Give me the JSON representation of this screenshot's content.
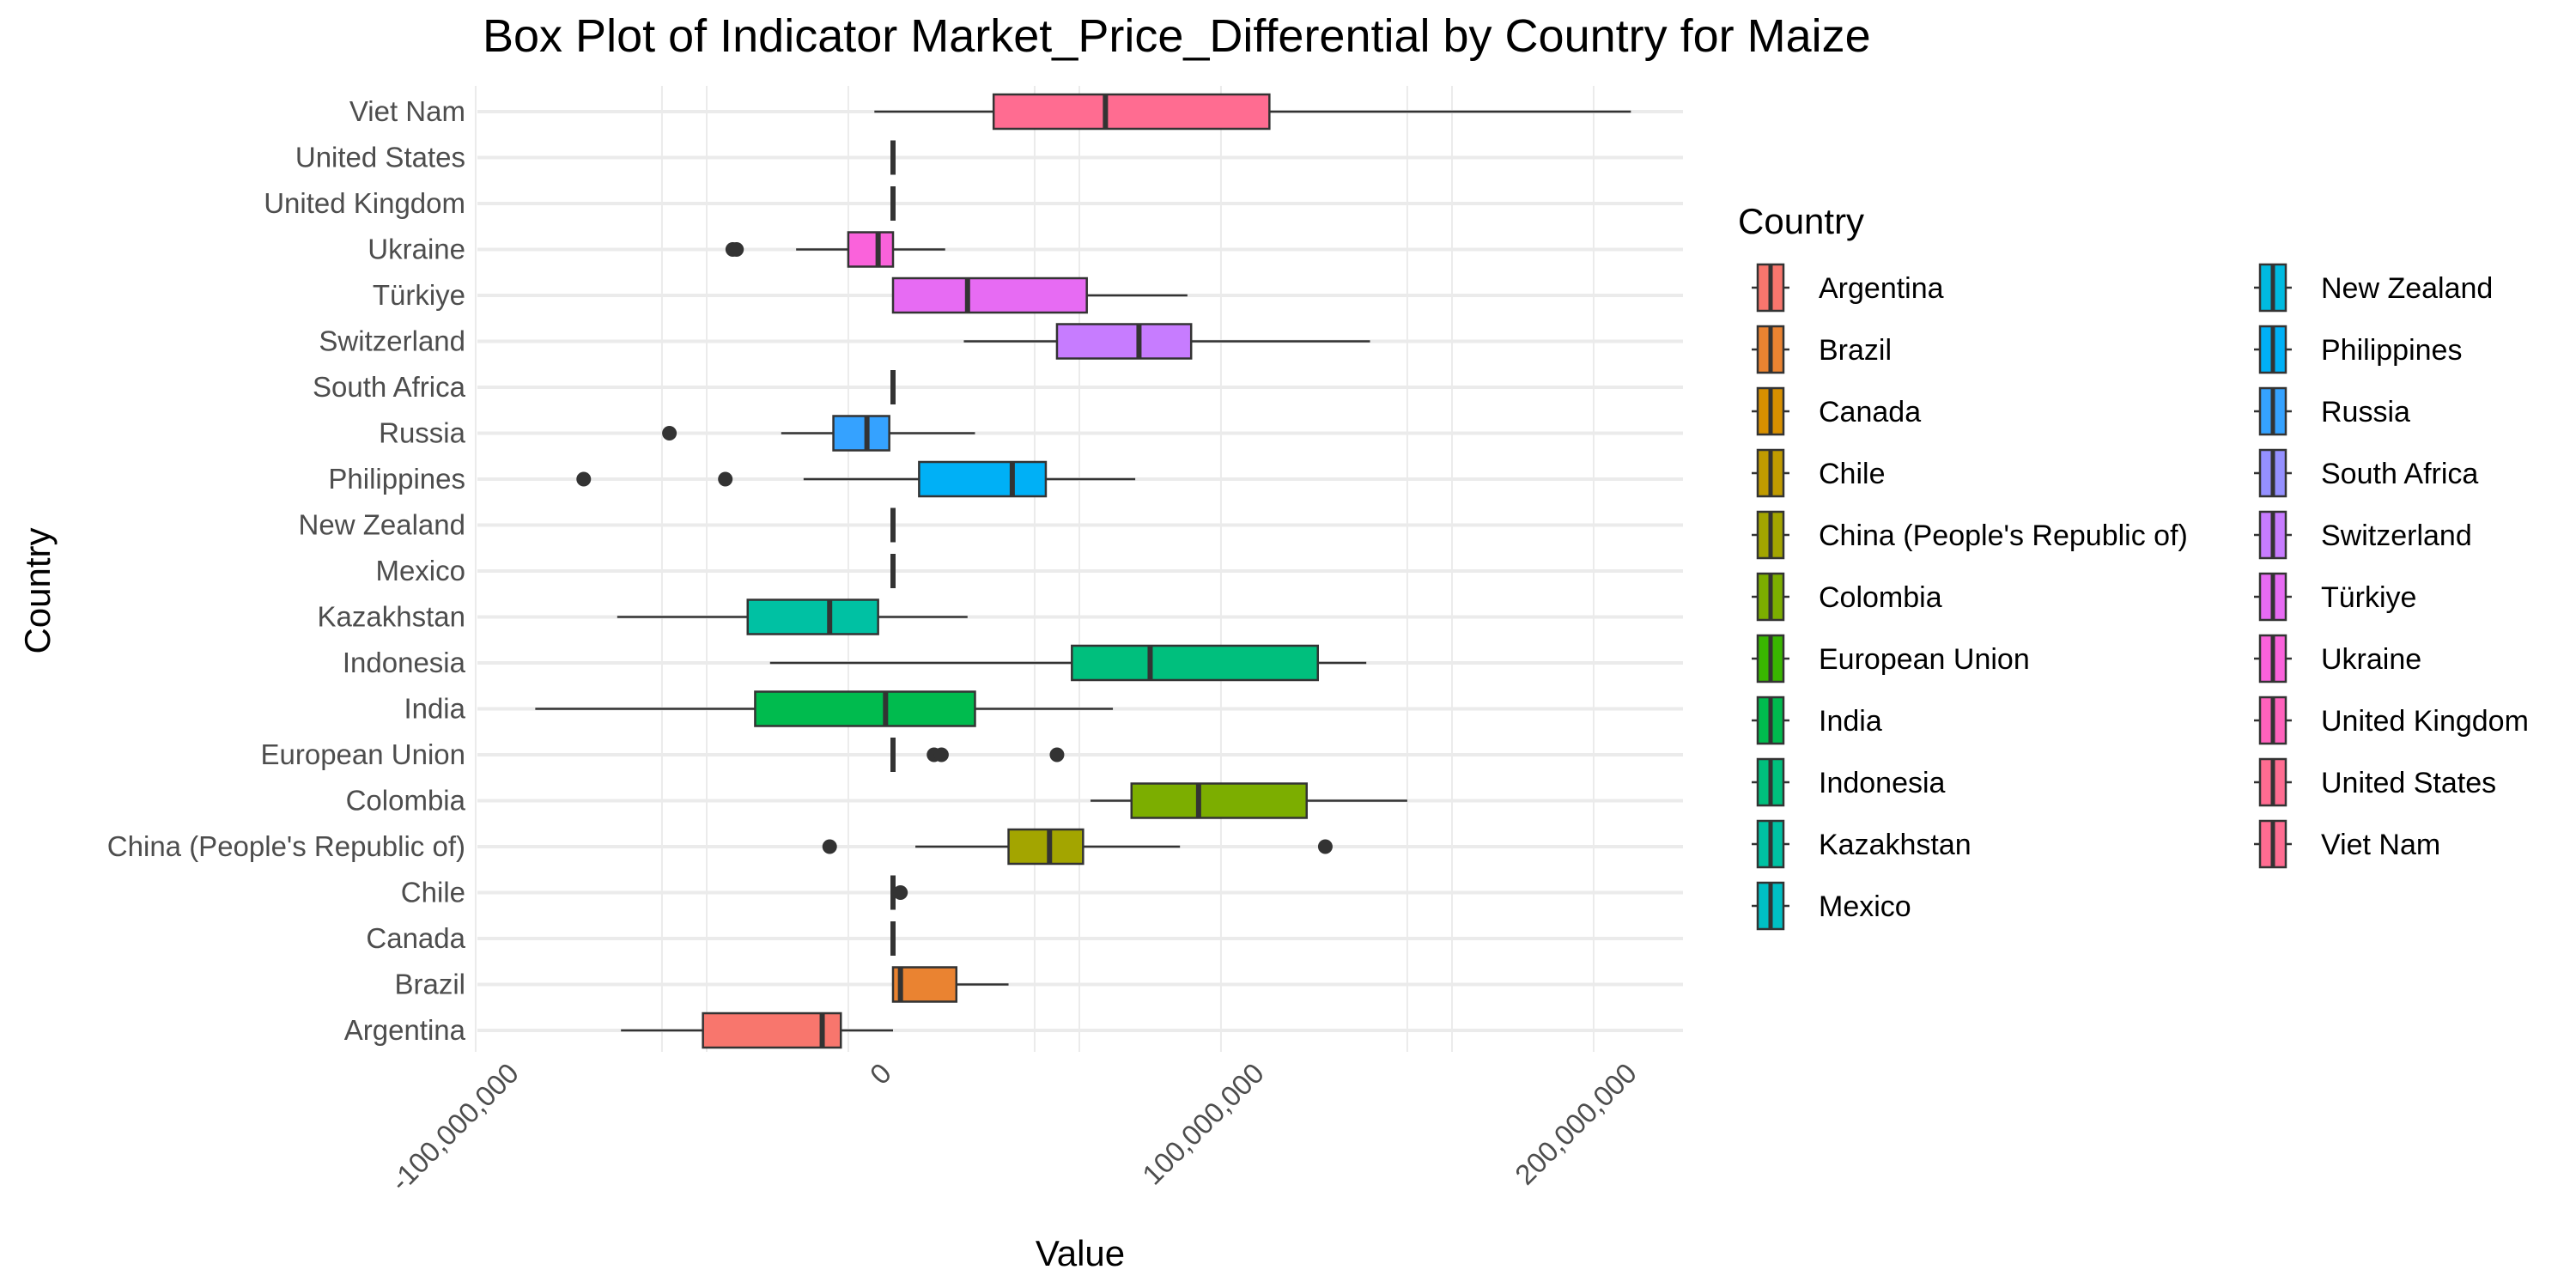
{
  "chart_data": {
    "type": "boxplot",
    "title": "Box Plot of Indicator Market_Price_Differential by Country for Maize",
    "xlabel": "Value",
    "ylabel": "Country",
    "orientation": "horizontal",
    "xlim": [
      -112000000,
      212000000
    ],
    "x_ticks": [
      -100000000,
      0,
      100000000,
      200000000
    ],
    "x_tick_labels": [
      "-100,000,000",
      "0",
      "100,000,000",
      "200,000,000"
    ],
    "grid": true,
    "legend_title": "Country",
    "legend_position": "right",
    "categories": [
      "Argentina",
      "Brazil",
      "Canada",
      "Chile",
      "China (People's Republic of)",
      "Colombia",
      "European Union",
      "India",
      "Indonesia",
      "Kazakhstan",
      "Mexico",
      "New Zealand",
      "Philippines",
      "Russia",
      "South Africa",
      "Switzerland",
      "Türkiye",
      "Ukraine",
      "United Kingdom",
      "United States",
      "Viet Nam"
    ],
    "colors": [
      "#F8766D",
      "#EA8331",
      "#D89000",
      "#C09B00",
      "#A3A500",
      "#7CAE00",
      "#39B600",
      "#00BB4E",
      "#00BF7D",
      "#00C1A3",
      "#00BFC4",
      "#00BAE0",
      "#00B0F6",
      "#35A2FF",
      "#9590FF",
      "#C77CFF",
      "#E76BF3",
      "#FA62DB",
      "#FF62BC",
      "#FF6C91",
      "#FF6C91"
    ],
    "series": [
      {
        "name": "Argentina",
        "whisker_low": -73000000,
        "q1": -51000000,
        "median": -19000000,
        "q3": -14000000,
        "whisker_high": 0,
        "outliers": []
      },
      {
        "name": "Brazil",
        "whisker_low": 0,
        "q1": 0,
        "median": 2000000,
        "q3": 17000000,
        "whisker_high": 31000000,
        "outliers": []
      },
      {
        "name": "Canada",
        "whisker_low": 0,
        "q1": 0,
        "median": 0,
        "q3": 0,
        "whisker_high": 0,
        "outliers": []
      },
      {
        "name": "Chile",
        "whisker_low": 0,
        "q1": 0,
        "median": 0,
        "q3": 0,
        "whisker_high": 0,
        "outliers": [
          2000000
        ]
      },
      {
        "name": "China (People's Republic of)",
        "whisker_low": 6000000,
        "q1": 31000000,
        "median": 42000000,
        "q3": 51000000,
        "whisker_high": 77000000,
        "outliers": [
          -17000000,
          116000000
        ]
      },
      {
        "name": "Colombia",
        "whisker_low": 53000000,
        "q1": 64000000,
        "median": 82000000,
        "q3": 111000000,
        "whisker_high": 138000000,
        "outliers": []
      },
      {
        "name": "European Union",
        "whisker_low": 0,
        "q1": 0,
        "median": 0,
        "q3": 0,
        "whisker_high": 0,
        "outliers": [
          11000000,
          13000000,
          44000000
        ]
      },
      {
        "name": "India",
        "whisker_low": -96000000,
        "q1": -37000000,
        "median": -2000000,
        "q3": 22000000,
        "whisker_high": 59000000,
        "outliers": []
      },
      {
        "name": "Indonesia",
        "whisker_low": -33000000,
        "q1": 48000000,
        "median": 69000000,
        "q3": 114000000,
        "whisker_high": 127000000,
        "outliers": []
      },
      {
        "name": "Kazakhstan",
        "whisker_low": -74000000,
        "q1": -39000000,
        "median": -17000000,
        "q3": -4000000,
        "whisker_high": 20000000,
        "outliers": []
      },
      {
        "name": "Mexico",
        "whisker_low": 0,
        "q1": 0,
        "median": 0,
        "q3": 0,
        "whisker_high": 0,
        "outliers": []
      },
      {
        "name": "New Zealand",
        "whisker_low": 0,
        "q1": 0,
        "median": 0,
        "q3": 0,
        "whisker_high": 0,
        "outliers": []
      },
      {
        "name": "Philippines",
        "whisker_low": -24000000,
        "q1": 7000000,
        "median": 32000000,
        "q3": 41000000,
        "whisker_high": 65000000,
        "outliers": [
          -83000000,
          -45000000
        ]
      },
      {
        "name": "Russia",
        "whisker_low": -30000000,
        "q1": -16000000,
        "median": -7000000,
        "q3": -1000000,
        "whisker_high": 22000000,
        "outliers": [
          -60000000
        ]
      },
      {
        "name": "South Africa",
        "whisker_low": 0,
        "q1": 0,
        "median": 0,
        "q3": 0,
        "whisker_high": 0,
        "outliers": []
      },
      {
        "name": "Switzerland",
        "whisker_low": 19000000,
        "q1": 44000000,
        "median": 66000000,
        "q3": 80000000,
        "whisker_high": 128000000,
        "outliers": []
      },
      {
        "name": "Türkiye",
        "whisker_low": 0,
        "q1": 0,
        "median": 20000000,
        "q3": 52000000,
        "whisker_high": 79000000,
        "outliers": []
      },
      {
        "name": "Ukraine",
        "whisker_low": -26000000,
        "q1": -12000000,
        "median": -4000000,
        "q3": 0,
        "whisker_high": 14000000,
        "outliers": [
          -43000000,
          -42000000
        ]
      },
      {
        "name": "United Kingdom",
        "whisker_low": 0,
        "q1": 0,
        "median": 0,
        "q3": 0,
        "whisker_high": 0,
        "outliers": []
      },
      {
        "name": "United States",
        "whisker_low": 0,
        "q1": 0,
        "median": 0,
        "q3": 0,
        "whisker_high": 0,
        "outliers": []
      },
      {
        "name": "Viet Nam",
        "whisker_low": -5000000,
        "q1": 27000000,
        "median": 57000000,
        "q3": 101000000,
        "whisker_high": 198000000,
        "outliers": []
      }
    ]
  }
}
